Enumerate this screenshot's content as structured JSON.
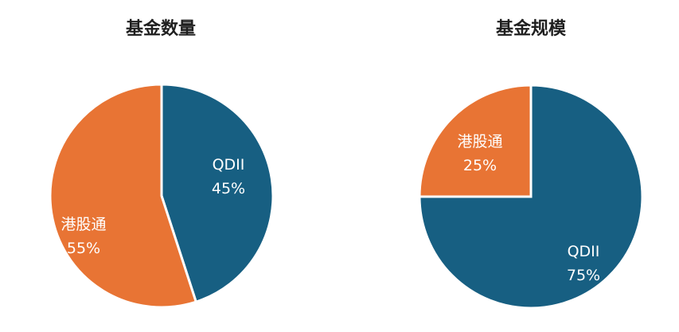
{
  "chart_data": [
    {
      "type": "pie",
      "title": "基金数量",
      "slices": [
        {
          "label": "QDII",
          "value": 45,
          "value_text": "45%",
          "color": "#175f82"
        },
        {
          "label": "港股通",
          "value": 55,
          "value_text": "55%",
          "color": "#e87434"
        }
      ]
    },
    {
      "type": "pie",
      "title": "基金规模",
      "slices": [
        {
          "label": "QDII",
          "value": 75,
          "value_text": "75%",
          "color": "#175f82"
        },
        {
          "label": "港股通",
          "value": 25,
          "value_text": "25%",
          "color": "#e87434"
        }
      ]
    }
  ]
}
